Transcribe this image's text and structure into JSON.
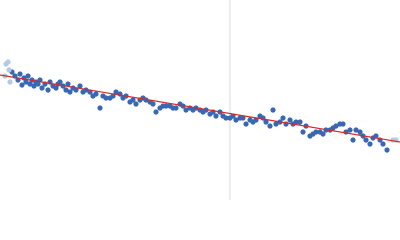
{
  "chart_data": {
    "type": "scatter",
    "xlim": [
      0,
      400
    ],
    "ylim": [
      0,
      200
    ],
    "vline": {
      "x": 230,
      "color": "#d6dcea"
    },
    "fit": {
      "color": "#d62a2a",
      "x": [
        0,
        400
      ],
      "values": [
        125,
        58
      ]
    },
    "series": [
      {
        "color": "#3a67b3",
        "x": [
          12,
          15,
          18,
          20,
          22,
          24,
          26,
          28,
          30,
          32,
          34,
          36,
          38,
          40,
          42,
          45,
          48,
          50,
          53,
          56,
          58,
          60,
          63,
          66,
          68,
          70,
          73,
          76,
          80,
          83,
          86,
          90,
          93,
          96,
          100,
          103,
          106,
          110,
          113,
          116,
          120,
          123,
          126,
          130,
          133,
          136,
          140,
          143,
          146,
          150,
          153,
          156,
          160,
          163,
          166,
          170,
          173,
          176,
          180,
          183,
          186,
          190,
          193,
          196,
          200,
          203,
          206,
          210,
          213,
          216,
          220,
          223,
          226,
          230,
          233,
          236,
          240,
          243,
          246,
          250,
          253,
          256,
          260,
          263,
          266,
          270,
          273,
          276,
          280,
          283,
          286,
          290,
          293,
          296,
          300,
          303,
          306,
          310,
          313,
          316,
          320,
          323,
          326,
          330,
          333,
          336,
          340,
          343,
          346,
          350,
          353,
          356,
          360,
          363,
          366,
          370,
          373,
          376,
          380,
          383,
          387
        ],
        "values": [
          128,
          124,
          120,
          126,
          115,
          122,
          118,
          124,
          116,
          120,
          114,
          118,
          116,
          120,
          112,
          116,
          110,
          118,
          114,
          112,
          116,
          118,
          114,
          110,
          116,
          108,
          112,
          110,
          114,
          108,
          110,
          108,
          104,
          106,
          92,
          104,
          102,
          102,
          104,
          108,
          106,
          102,
          104,
          98,
          100,
          96,
          100,
          102,
          100,
          98,
          96,
          88,
          92,
          94,
          94,
          94,
          92,
          92,
          96,
          94,
          90,
          92,
          90,
          92,
          90,
          88,
          90,
          86,
          88,
          84,
          88,
          84,
          82,
          82,
          84,
          80,
          82,
          82,
          76,
          80,
          78,
          80,
          84,
          82,
          78,
          74,
          90,
          76,
          78,
          82,
          76,
          80,
          76,
          78,
          78,
          68,
          74,
          64,
          66,
          68,
          68,
          66,
          70,
          70,
          72,
          74,
          76,
          76,
          68,
          70,
          60,
          70,
          68,
          64,
          60,
          56,
          62,
          64,
          60,
          56,
          50
        ]
      },
      {
        "color": "#b3c9e6",
        "x": [
          5,
          6,
          8,
          9,
          10,
          393,
          396
        ],
        "values": [
          124,
          136,
          138,
          130,
          118,
          60,
          60
        ]
      }
    ]
  }
}
